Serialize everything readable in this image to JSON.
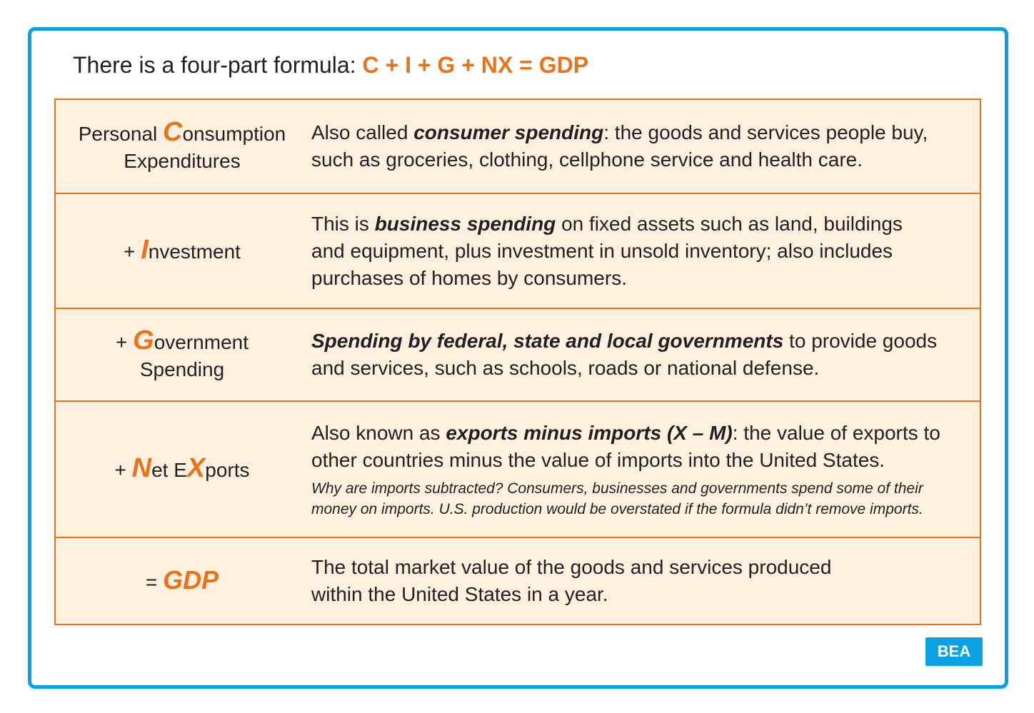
{
  "header": {
    "intro": "There is a four-part formula: ",
    "formula": "C + I + G + NX = GDP"
  },
  "rows": [
    {
      "term": {
        "prefix": "Personal ",
        "letter": "C",
        "rest": "onsumption",
        "line2": "Expenditures"
      },
      "desc": {
        "p1": "Also called ",
        "b1": "consumer spending",
        "p2": ": the goods and services people buy, such as groceries, clothing, cellphone service and health care."
      }
    },
    {
      "term": {
        "prefix": "+ ",
        "letter": "I",
        "rest": "nvestment"
      },
      "desc": {
        "p1": "This is ",
        "b1": "business spending",
        "p2": " on fixed assets such as land, buildings and equipment, plus investment in unsold inventory; also includes purchases of homes by consumers."
      }
    },
    {
      "term": {
        "prefix": "+ ",
        "letter": "G",
        "rest": "overnment",
        "line2": "Spending"
      },
      "desc": {
        "b1": "Spending by federal, state and local governments",
        "p2": " to provide goods and services, such as schools, roads or national defense."
      }
    },
    {
      "term": {
        "prefix": "+ ",
        "letter": "N",
        "mid": "et E",
        "letter2": "X",
        "rest": "ports"
      },
      "desc": {
        "p1": "Also known as ",
        "b1": "exports minus imports (X – M)",
        "p2": ": the value of exports to other countries minus the value of imports into the United States.",
        "note": "Why are imports subtracted? Consumers, businesses and governments spend some of their money on imports. U.S. production would be overstated if the formula didn’t remove imports."
      }
    },
    {
      "term": {
        "prefix": "= ",
        "letter": "GDP"
      },
      "desc": {
        "p1": "The total market value of the goods and services produced within the United States in a year."
      }
    }
  ],
  "badge": "BEA",
  "colors": {
    "accent": "#e8731c",
    "frame": "#0aa1e2",
    "table_bg": "#fdf0de",
    "text": "#231f20"
  }
}
